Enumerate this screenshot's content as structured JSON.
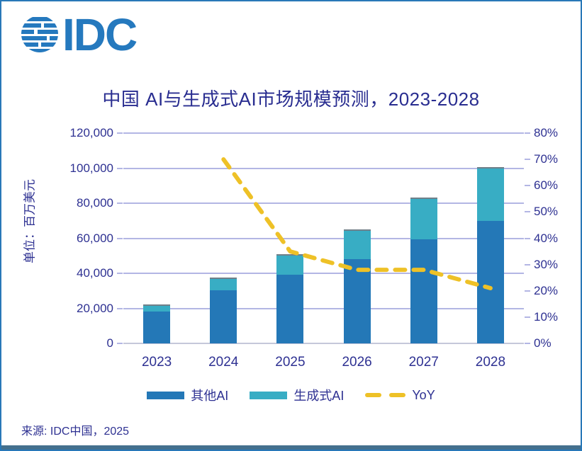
{
  "page": {
    "logo_alt": "IDC",
    "title": "中国 AI与生成式AI市场规模预测，2023-2028",
    "source": "来源: IDC中国，2025"
  },
  "colors": {
    "other_ai_bar": "#2478B7",
    "gen_ai_bar": "#38ADC4",
    "yoy_line": "#EEC127",
    "navy_text": "#2E3192",
    "title_text": "#292D90",
    "gridline": "#B3B6E4",
    "page_border": "#2878B8",
    "footer_strip": "#44708E",
    "logo_blue": "#2579BE",
    "bar_top_edge": "#70808A"
  },
  "chart_data": {
    "type": "bar",
    "subtype": "stacked-bars-with-line",
    "title": "中国 AI与生成式AI市场规模预测，2023-2028",
    "categories": [
      "2023",
      "2024",
      "2025",
      "2026",
      "2027",
      "2028"
    ],
    "series": [
      {
        "name": "其他AI",
        "type": "bar",
        "stack": "total",
        "color": "#2478B7",
        "values": [
          18200,
          30300,
          39300,
          48000,
          59600,
          70000
        ]
      },
      {
        "name": "生成式AI",
        "type": "bar",
        "stack": "total",
        "color": "#38ADC4",
        "values": [
          4000,
          7300,
          11700,
          17200,
          23700,
          30800
        ]
      },
      {
        "name": "YoY",
        "type": "line",
        "style": "dashed",
        "axis": "right",
        "unit": "%",
        "color": "#EEC127",
        "values": [
          null,
          70,
          35,
          28,
          28,
          21
        ]
      }
    ],
    "stacked_totals": [
      22200,
      37600,
      51000,
      65200,
      83300,
      100800
    ],
    "ylabel_left": "单位：百万美元",
    "y_left_axis": {
      "min": 0,
      "max": 120000,
      "step": 20000,
      "tick_labels": [
        "0",
        "20,000",
        "40,000",
        "60,000",
        "80,000",
        "100,000",
        "120,000"
      ]
    },
    "y_right_axis": {
      "min": 0,
      "max": 80,
      "step": 10,
      "suffix": "%",
      "tick_labels": [
        "0%",
        "10%",
        "20%",
        "30%",
        "40%",
        "50%",
        "60%",
        "70%",
        "80%"
      ]
    },
    "grid": "horizontal",
    "legend_position": "bottom"
  },
  "legend": {
    "items": [
      {
        "label": "其他AI",
        "marker": "bar-swatch"
      },
      {
        "label": "生成式AI",
        "marker": "bar-swatch"
      },
      {
        "label": "YoY",
        "marker": "dashed-line"
      }
    ]
  }
}
